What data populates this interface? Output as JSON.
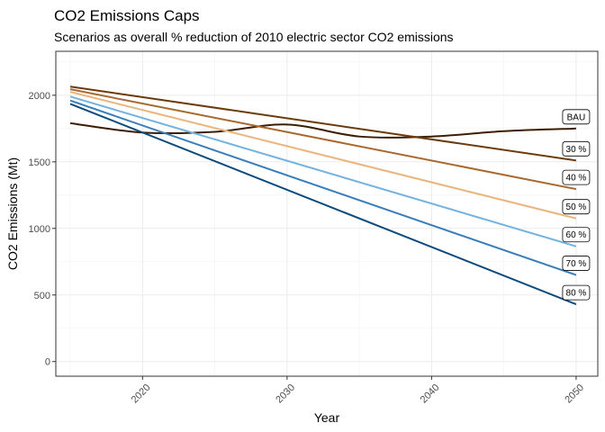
{
  "chart_data": {
    "type": "line",
    "title": "CO2 Emissions Caps",
    "subtitle": "Scenarios as overall % reduction of 2010 electric sector CO2 emissions",
    "xlabel": "Year",
    "ylabel": "CO2 Emissions (Mt)",
    "xlim": [
      2014,
      2051.5
    ],
    "ylim": [
      -110,
      2330
    ],
    "x_ticks": [
      2020,
      2030,
      2040,
      2050
    ],
    "y_ticks": [
      0,
      500,
      1000,
      1500,
      2000
    ],
    "grid": true,
    "legend": "none",
    "series": [
      {
        "name": "BAU",
        "color": "#3b1e04",
        "x": [
          2015,
          2020,
          2025,
          2030,
          2035,
          2040,
          2045,
          2050
        ],
        "y": [
          1790,
          1720,
          1725,
          1780,
          1690,
          1690,
          1730,
          1750
        ]
      },
      {
        "name": "30 %",
        "color": "#6b3b0a",
        "x": [
          2015,
          2050
        ],
        "y": [
          2065,
          1510
        ]
      },
      {
        "name": "40 %",
        "color": "#a8692e",
        "x": [
          2015,
          2050
        ],
        "y": [
          2045,
          1295
        ]
      },
      {
        "name": "50 %",
        "color": "#eab57c",
        "x": [
          2015,
          2050
        ],
        "y": [
          2025,
          1075
        ]
      },
      {
        "name": "60 %",
        "color": "#74b3e0",
        "x": [
          2015,
          2050
        ],
        "y": [
          1990,
          865
        ]
      },
      {
        "name": "70 %",
        "color": "#3a7dba",
        "x": [
          2015,
          2050
        ],
        "y": [
          1960,
          650
        ]
      },
      {
        "name": "80 %",
        "color": "#0d4a7c",
        "x": [
          2015,
          2050
        ],
        "y": [
          1935,
          430
        ]
      }
    ]
  }
}
